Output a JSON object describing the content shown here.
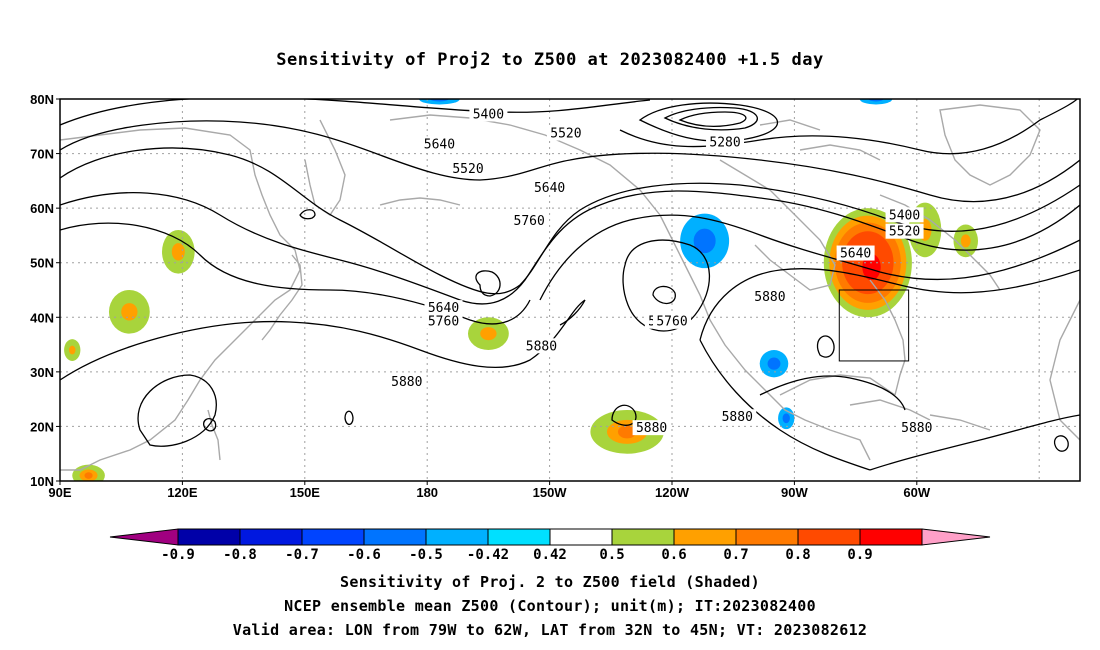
{
  "title": "Sensitivity of Proj2 to Z500 at 2023082400 +1.5 day",
  "map": {
    "lat_labels": [
      "80N",
      "70N",
      "60N",
      "50N",
      "40N",
      "30N",
      "20N",
      "10N"
    ],
    "lon_labels": [
      "90E",
      "120E",
      "150E",
      "180",
      "150W",
      "120W",
      "90W",
      "60W"
    ],
    "colors": {
      "land": "#a9a9a9",
      "contour": "#000000",
      "grid": "#a0a0a0"
    },
    "contour_labels": [
      {
        "text": "5400",
        "lon": -165,
        "lat": 77
      },
      {
        "text": "5520",
        "lon": -146,
        "lat": 73.5
      },
      {
        "text": "5640",
        "lon": -177,
        "lat": 71.5
      },
      {
        "text": "5280",
        "lon": -107,
        "lat": 71.8
      },
      {
        "text": "5520",
        "lon": -170,
        "lat": 67
      },
      {
        "text": "5640",
        "lon": -150,
        "lat": 63.5
      },
      {
        "text": "5760",
        "lon": -155,
        "lat": 57.5
      },
      {
        "text": "5400",
        "lon": -63,
        "lat": 58.5
      },
      {
        "text": "5520",
        "lon": -63,
        "lat": 55.5
      },
      {
        "text": "5640",
        "lon": -75,
        "lat": 51.5
      },
      {
        "text": "5880",
        "lon": -96,
        "lat": 43.5
      },
      {
        "text": "5640",
        "lon": -176,
        "lat": 41.5
      },
      {
        "text": "5760",
        "lon": -176,
        "lat": 39
      },
      {
        "text": "5760",
        "lon": -122,
        "lat": 39
      },
      {
        "text": "5760",
        "lon": -120,
        "lat": 39
      },
      {
        "text": "5880",
        "lon": -152,
        "lat": 34.5
      },
      {
        "text": "5880",
        "lon": -185,
        "lat": 28
      },
      {
        "text": "5880",
        "lon": -104,
        "lat": 21.5
      },
      {
        "text": "5880",
        "lon": -125,
        "lat": 19.5
      },
      {
        "text": "5880",
        "lon": -60,
        "lat": 19.5
      }
    ],
    "valid_box": {
      "lon_min": -79,
      "lon_max": -62,
      "lat_min": 32,
      "lat_max": 45
    },
    "shaded_regions": [
      {
        "name": "nw-atlantic-max",
        "level": "0.8",
        "lon": -72,
        "lat": 50,
        "rx": 9,
        "ry": 8
      },
      {
        "name": "hudson-neg",
        "level": "-0.5",
        "lon": -112,
        "lat": 54,
        "rx": 6,
        "ry": 5
      },
      {
        "name": "gulf-neg",
        "level": "-0.5",
        "lon": -95,
        "lat": 31.5,
        "rx": 3.5,
        "ry": 2.5
      },
      {
        "name": "caribbean-neg",
        "level": "-0.5",
        "lon": -92,
        "lat": 21.5,
        "rx": 2,
        "ry": 2
      },
      {
        "name": "asia-pos",
        "level": "0.5",
        "lon": 107,
        "lat": 41,
        "rx": 5,
        "ry": 4
      },
      {
        "name": "mongolia-pos",
        "level": "0.5",
        "lon": 119,
        "lat": 52,
        "rx": 4,
        "ry": 4
      },
      {
        "name": "pacific-pos",
        "level": "0.5",
        "lon": -165,
        "lat": 37,
        "rx": 5,
        "ry": 3
      },
      {
        "name": "subtrop-pos",
        "level": "0.6",
        "lon": -131,
        "lat": 19,
        "rx": 9,
        "ry": 4
      },
      {
        "name": "tibet-pos",
        "level": "0.5",
        "lon": 93,
        "lat": 34,
        "rx": 2,
        "ry": 2
      },
      {
        "name": "india-pos",
        "level": "0.6",
        "lon": 97,
        "lat": 11,
        "rx": 4,
        "ry": 2
      },
      {
        "name": "atl-east-pos",
        "level": "0.5",
        "lon": -58,
        "lat": 56,
        "rx": 4,
        "ry": 5
      },
      {
        "name": "atl-east2-pos",
        "level": "0.5",
        "lon": -48,
        "lat": 54,
        "rx": 3,
        "ry": 3
      },
      {
        "name": "arctic-neg",
        "level": "-0.5",
        "lon": -177,
        "lat": 80,
        "rx": 5,
        "ry": 1
      },
      {
        "name": "arctic-neg2",
        "level": "-0.5",
        "lon": -70,
        "lat": 80,
        "rx": 4,
        "ry": 1
      }
    ]
  },
  "colorbar": {
    "labels": [
      "-0.9",
      "-0.8",
      "-0.7",
      "-0.6",
      "-0.5",
      "-0.42",
      "0.42",
      "0.5",
      "0.6",
      "0.7",
      "0.8",
      "0.9"
    ],
    "colors": [
      "#a00080",
      "#0000a8",
      "#0018e0",
      "#0044ff",
      "#0074ff",
      "#00b0ff",
      "#00e0ff",
      "#ffffff",
      "#a8d43c",
      "#ffa000",
      "#ff7a00",
      "#ff4a00",
      "#ff0000",
      "#ffa0c8"
    ]
  },
  "footer": {
    "line1": "Sensitivity of Proj. 2 to Z500 field (Shaded)",
    "line2": "NCEP ensemble mean Z500 (Contour); unit(m); IT:2023082400",
    "line3": "Valid area: LON from 79W to 62W, LAT from 32N to 45N; VT: 2023082612"
  }
}
